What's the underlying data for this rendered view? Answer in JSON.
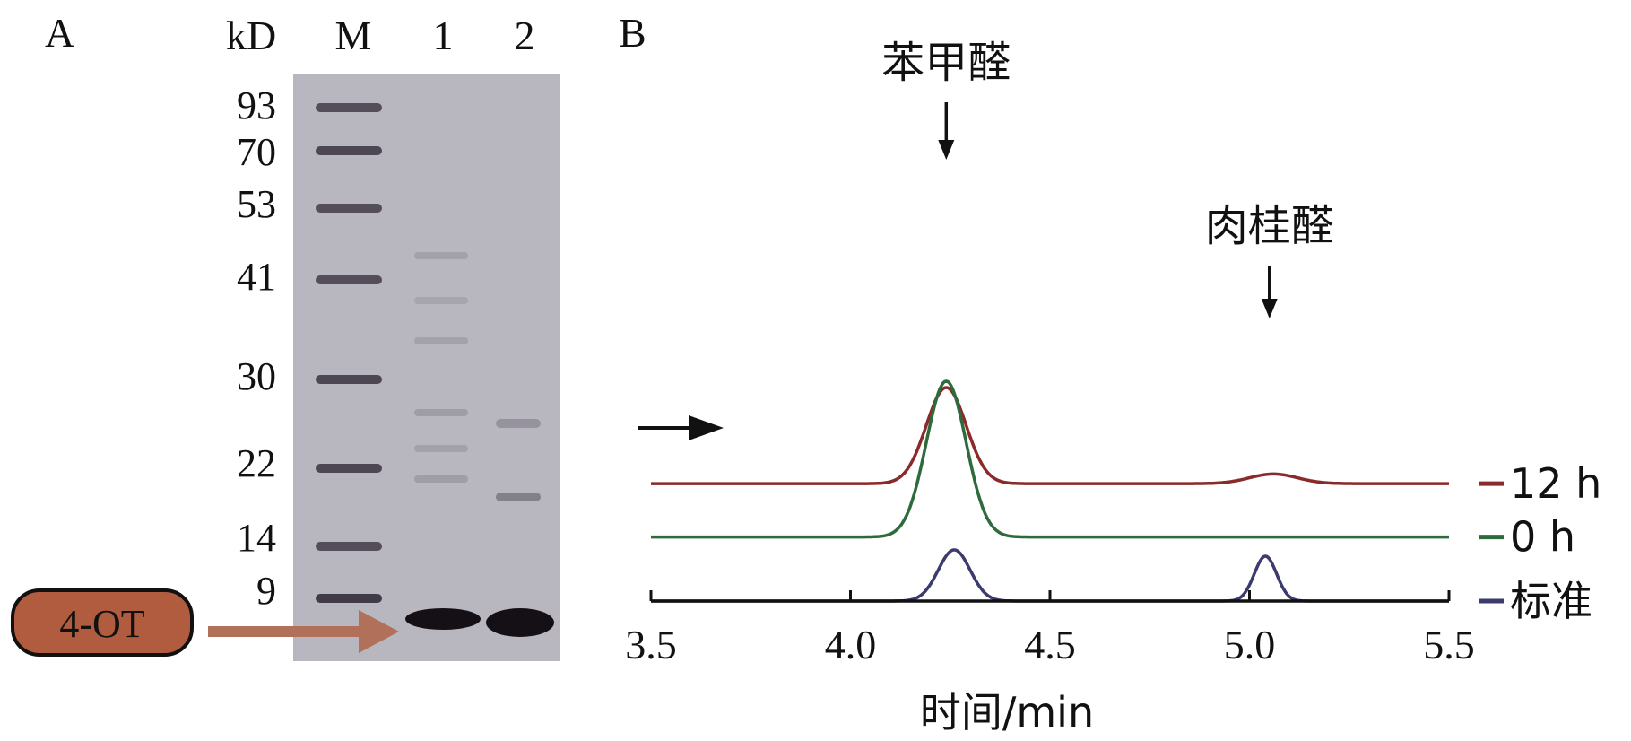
{
  "panel_a": {
    "label": "A",
    "unit": "kD",
    "lane_labels": [
      "M",
      "1",
      "2"
    ],
    "markers": [
      "93",
      "70",
      "53",
      "41",
      "30",
      "22",
      "14",
      "9"
    ],
    "protein_tag": "4-OT",
    "colors": {
      "gel": "#b8b6bf",
      "tag_fill": "#b25c3f",
      "arrow": "#b0705a"
    }
  },
  "panel_b": {
    "label": "B",
    "annotations": [
      {
        "text": "苯甲醛",
        "x": 4.24
      },
      {
        "text": "肉桂醛",
        "x": 5.05
      }
    ]
  },
  "chart_data": {
    "type": "line",
    "xlabel": "时间/min",
    "xlim": [
      3.5,
      5.5
    ],
    "xticks": [
      "3.5",
      "4.0",
      "4.5",
      "5.0",
      "5.5"
    ],
    "grid": false,
    "legend": "right, one label per trace",
    "series": [
      {
        "name": "12 h",
        "color": "#8b2a2a",
        "baseline": 0.55,
        "peaks": [
          {
            "center": 4.24,
            "height": 0.45,
            "width": 0.05
          },
          {
            "center": 5.06,
            "height": 0.045,
            "width": 0.06
          }
        ]
      },
      {
        "name": "0 h",
        "color": "#2e6b3c",
        "baseline": 0.3,
        "peaks": [
          {
            "center": 4.24,
            "height": 0.73,
            "width": 0.05
          }
        ]
      },
      {
        "name": "标准",
        "color": "#3b3b6e",
        "baseline": 0.0,
        "peaks": [
          {
            "center": 4.26,
            "height": 0.24,
            "width": 0.04
          },
          {
            "center": 5.04,
            "height": 0.21,
            "width": 0.028
          }
        ]
      }
    ]
  }
}
